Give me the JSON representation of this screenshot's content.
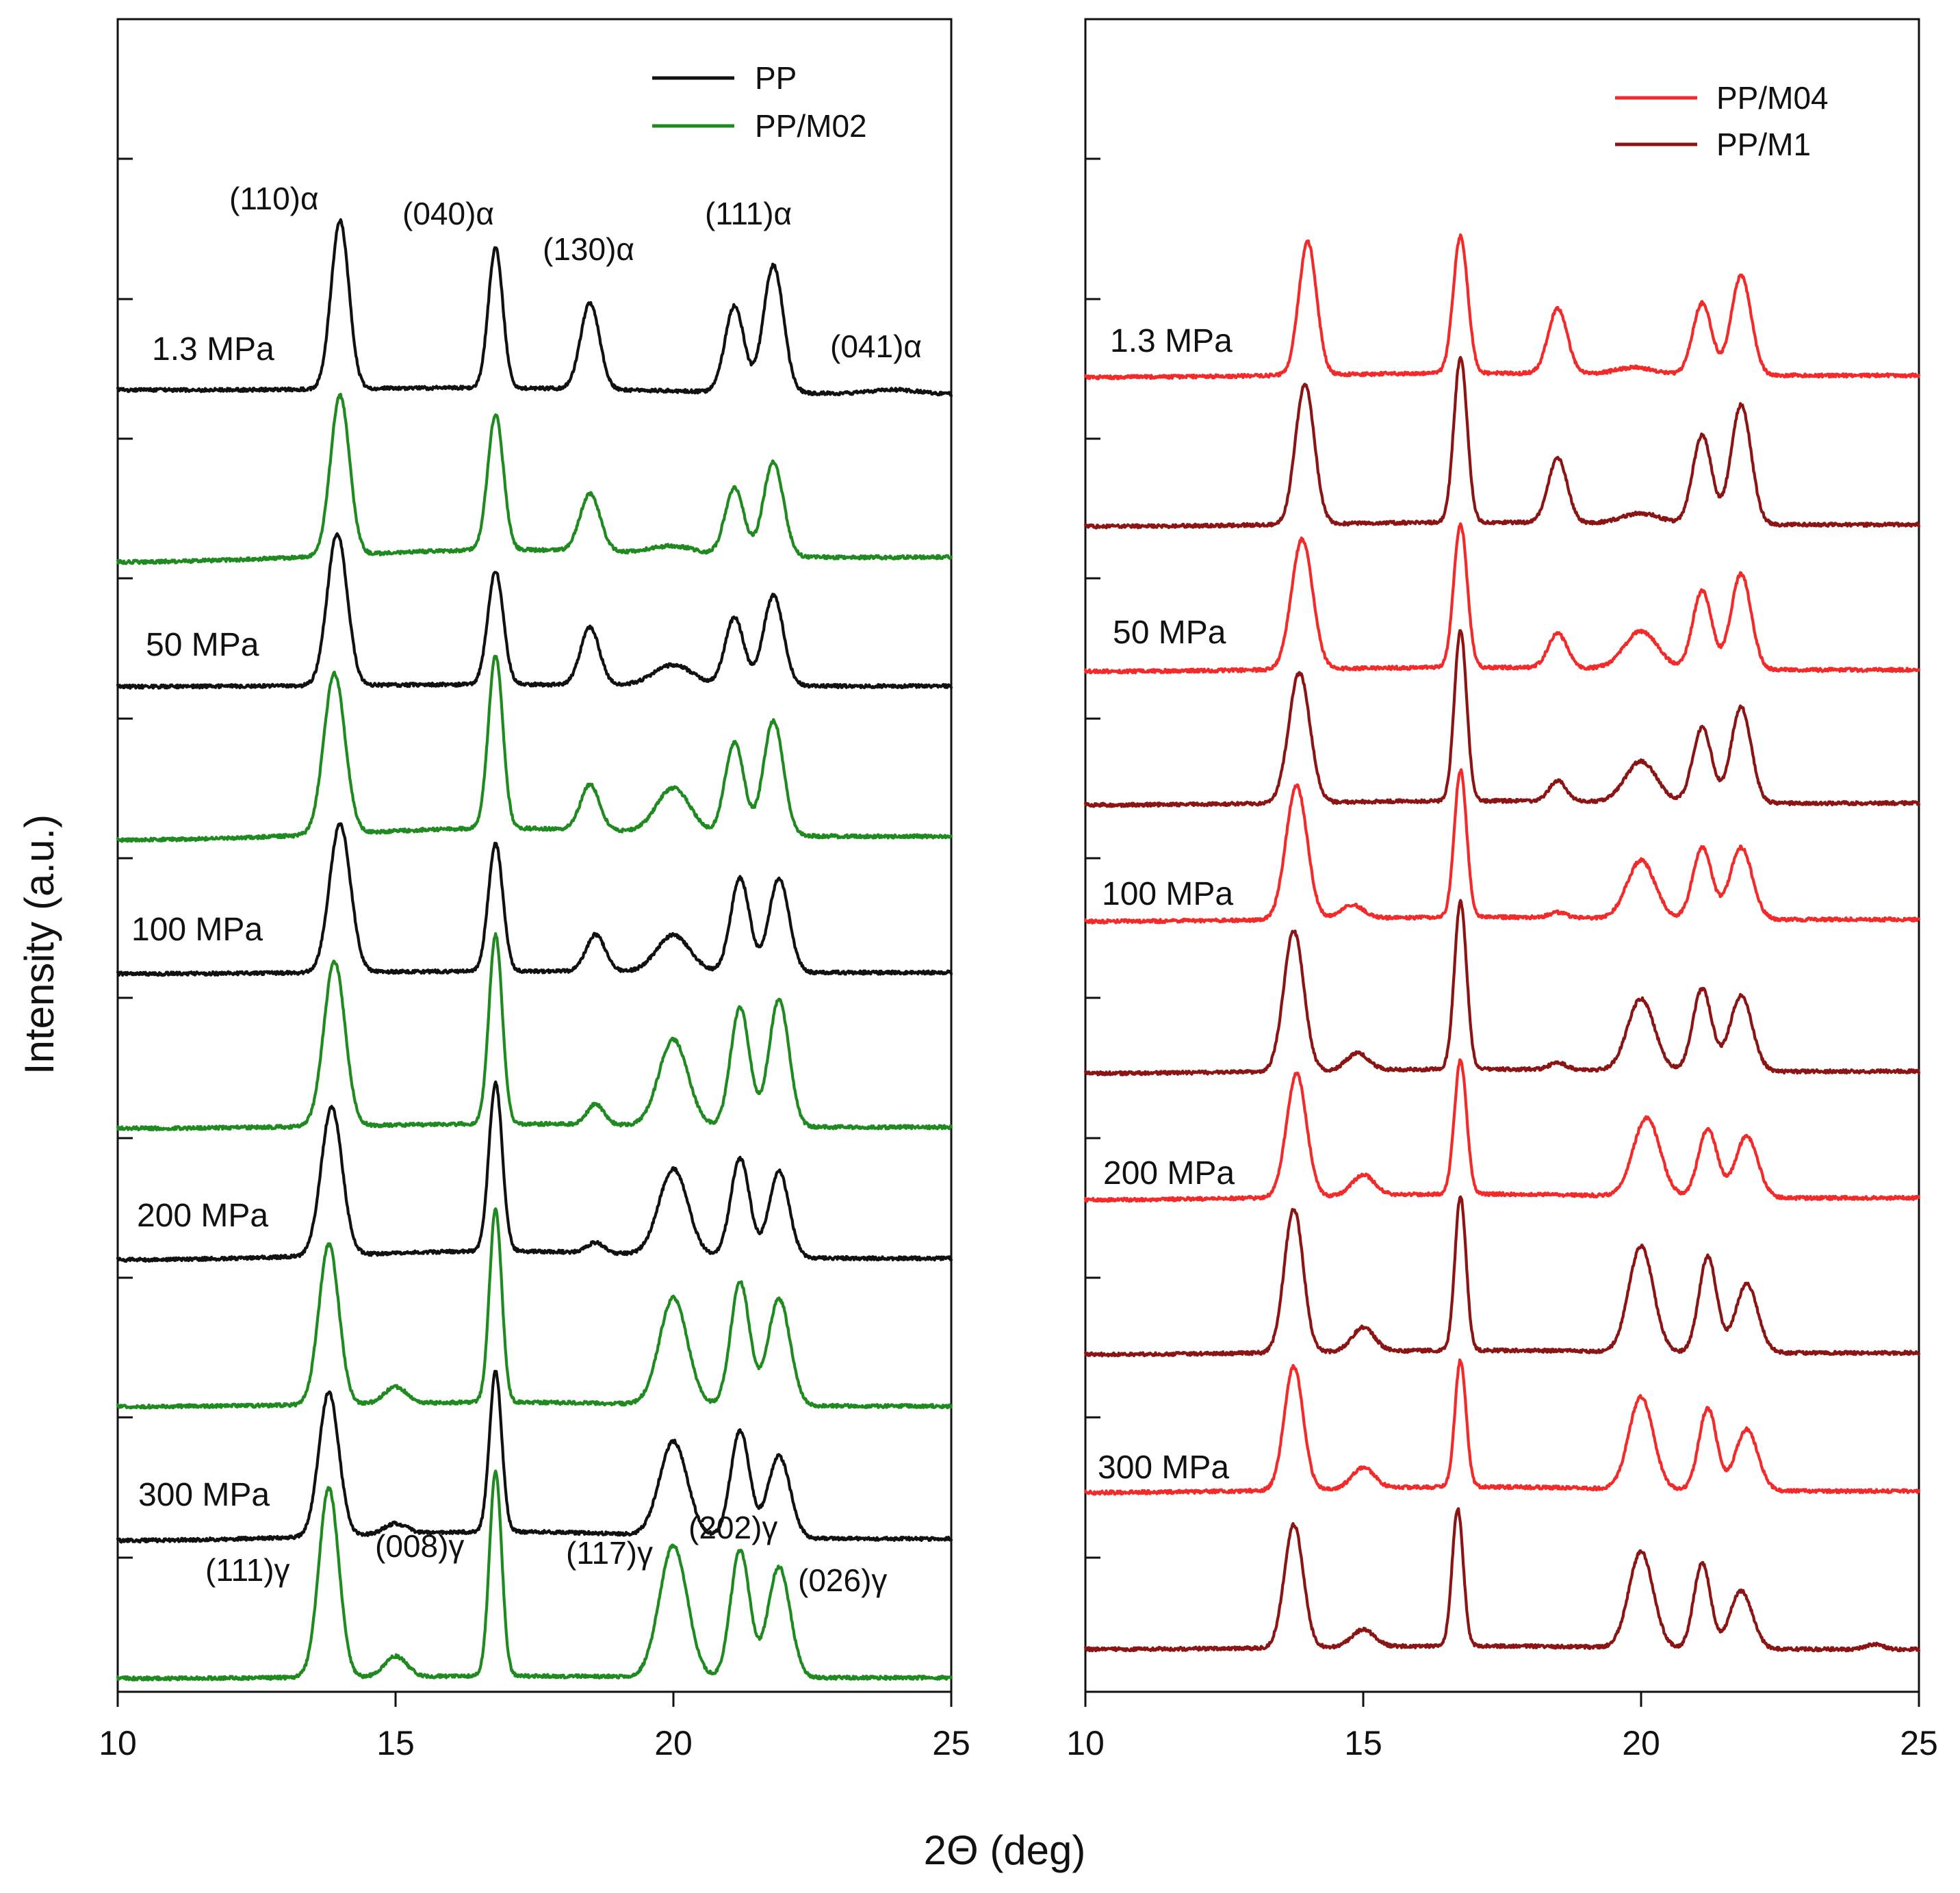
{
  "chart_data": {
    "type": "line",
    "xlabel": "2Θ (deg)",
    "ylabel": "Intensity (a.u.)",
    "xlim": [
      10,
      25
    ],
    "xticks": [
      10,
      15,
      20,
      25
    ],
    "grid": false,
    "colors": {
      "PP": "#111111",
      "PP/M02": "#1f8a1f",
      "PP/M04": "#f22a2a",
      "PP/M1": "#8b1414"
    },
    "panels": [
      {
        "id": "left",
        "legend": {
          "placement": "top-right",
          "entries": [
            "PP",
            "PP/M02"
          ]
        },
        "pressure_labels": [
          "1.3 MPa",
          "50 MPa",
          "100 MPa",
          "200 MPa",
          "300 MPa"
        ],
        "alpha_reflections": [
          {
            "label": "(110)α",
            "x": 14.0
          },
          {
            "label": "(040)α",
            "x": 16.8
          },
          {
            "label": "(130)α",
            "x": 18.5
          },
          {
            "label": "(111)α",
            "x": 21.5
          },
          {
            "label": "(041)α",
            "x": 24.0
          }
        ],
        "gamma_reflections": [
          {
            "label": "(111)γ",
            "x": 13.8
          },
          {
            "label": "(008)γ",
            "x": 16.8
          },
          {
            "label": "(117)γ",
            "x": 20.1
          },
          {
            "label": "(202)γ",
            "x": 21.2
          },
          {
            "label": "(026)γ",
            "x": 22.0
          }
        ],
        "series": [
          {
            "name": "PP",
            "pressure": "1.3 MPa",
            "peaks": [
              [
                14.0,
                0.82,
                0.16
              ],
              [
                16.8,
                0.68,
                0.13
              ],
              [
                18.5,
                0.42,
                0.17
              ],
              [
                21.1,
                0.42,
                0.17
              ],
              [
                21.8,
                0.62,
                0.18
              ],
              [
                24.0,
                0.02,
                0.4
              ]
            ]
          },
          {
            "name": "PP/M02",
            "pressure": "1.3 MPa",
            "peaks": [
              [
                14.0,
                0.78,
                0.17
              ],
              [
                16.8,
                0.66,
                0.14
              ],
              [
                18.5,
                0.28,
                0.18
              ],
              [
                21.1,
                0.33,
                0.17
              ],
              [
                21.8,
                0.46,
                0.18
              ],
              [
                20.0,
                0.04,
                0.4
              ]
            ]
          },
          {
            "name": "PP",
            "pressure": "50 MPa",
            "peaks": [
              [
                13.95,
                0.74,
                0.18
              ],
              [
                16.8,
                0.55,
                0.14
              ],
              [
                18.5,
                0.28,
                0.17
              ],
              [
                20.0,
                0.1,
                0.35
              ],
              [
                21.1,
                0.33,
                0.17
              ],
              [
                21.8,
                0.44,
                0.18
              ]
            ]
          },
          {
            "name": "PP/M02",
            "pressure": "50 MPa",
            "peaks": [
              [
                13.9,
                0.78,
                0.19
              ],
              [
                16.8,
                0.84,
                0.13
              ],
              [
                18.5,
                0.22,
                0.17
              ],
              [
                20.0,
                0.22,
                0.3
              ],
              [
                21.1,
                0.45,
                0.17
              ],
              [
                21.8,
                0.56,
                0.18
              ]
            ]
          },
          {
            "name": "PP",
            "pressure": "100 MPa",
            "peaks": [
              [
                14.0,
                0.72,
                0.19
              ],
              [
                16.8,
                0.62,
                0.13
              ],
              [
                18.6,
                0.18,
                0.17
              ],
              [
                20.0,
                0.18,
                0.3
              ],
              [
                21.2,
                0.46,
                0.17
              ],
              [
                21.9,
                0.46,
                0.18
              ]
            ]
          },
          {
            "name": "PP/M02",
            "pressure": "100 MPa",
            "peaks": [
              [
                13.9,
                0.8,
                0.19
              ],
              [
                16.8,
                0.92,
                0.12
              ],
              [
                18.6,
                0.1,
                0.15
              ],
              [
                20.0,
                0.42,
                0.26
              ],
              [
                21.2,
                0.58,
                0.17
              ],
              [
                21.9,
                0.62,
                0.18
              ]
            ]
          },
          {
            "name": "PP",
            "pressure": "200 MPa",
            "peaks": [
              [
                13.85,
                0.72,
                0.19
              ],
              [
                16.8,
                0.82,
                0.12
              ],
              [
                18.6,
                0.05,
                0.15
              ],
              [
                20.0,
                0.42,
                0.26
              ],
              [
                21.2,
                0.48,
                0.17
              ],
              [
                21.9,
                0.42,
                0.18
              ]
            ]
          },
          {
            "name": "PP/M02",
            "pressure": "200 MPa",
            "peaks": [
              [
                13.8,
                0.78,
                0.18
              ],
              [
                15.0,
                0.08,
                0.2
              ],
              [
                16.8,
                0.94,
                0.11
              ],
              [
                20.0,
                0.52,
                0.25
              ],
              [
                21.2,
                0.6,
                0.17
              ],
              [
                21.9,
                0.52,
                0.2
              ]
            ]
          },
          {
            "name": "PP",
            "pressure": "300 MPa",
            "peaks": [
              [
                13.8,
                0.7,
                0.18
              ],
              [
                15.0,
                0.05,
                0.2
              ],
              [
                16.8,
                0.78,
                0.11
              ],
              [
                20.0,
                0.46,
                0.25
              ],
              [
                21.2,
                0.52,
                0.17
              ],
              [
                21.9,
                0.4,
                0.2
              ]
            ]
          },
          {
            "name": "PP/M02",
            "pressure": "300 MPa",
            "peaks": [
              [
                13.8,
                0.92,
                0.18
              ],
              [
                15.0,
                0.1,
                0.2
              ],
              [
                16.8,
                1.0,
                0.11
              ],
              [
                20.0,
                0.64,
                0.25
              ],
              [
                21.2,
                0.62,
                0.17
              ],
              [
                21.9,
                0.54,
                0.2
              ]
            ]
          }
        ]
      },
      {
        "id": "right",
        "legend": {
          "placement": "top-right",
          "entries": [
            "PP/M04",
            "PP/M1"
          ]
        },
        "pressure_labels": [
          "1.3 MPa",
          "50 MPa",
          "100 MPa",
          "200 MPa",
          "300 MPa"
        ],
        "series": [
          {
            "name": "PP/M04",
            "pressure": "1.3 MPa",
            "peaks": [
              [
                14.0,
                0.78,
                0.16
              ],
              [
                16.75,
                0.8,
                0.13
              ],
              [
                18.5,
                0.38,
                0.17
              ],
              [
                19.9,
                0.04,
                0.35
              ],
              [
                21.1,
                0.42,
                0.17
              ],
              [
                21.8,
                0.58,
                0.18
              ]
            ]
          },
          {
            "name": "PP/M1",
            "pressure": "1.3 MPa",
            "peaks": [
              [
                13.95,
                0.82,
                0.17
              ],
              [
                16.75,
                0.96,
                0.12
              ],
              [
                18.5,
                0.38,
                0.17
              ],
              [
                20.0,
                0.06,
                0.35
              ],
              [
                21.1,
                0.52,
                0.17
              ],
              [
                21.8,
                0.7,
                0.18
              ]
            ]
          },
          {
            "name": "PP/M04",
            "pressure": "50 MPa",
            "peaks": [
              [
                13.9,
                0.76,
                0.19
              ],
              [
                16.75,
                0.84,
                0.12
              ],
              [
                18.5,
                0.2,
                0.17
              ],
              [
                20.0,
                0.22,
                0.3
              ],
              [
                21.1,
                0.46,
                0.17
              ],
              [
                21.8,
                0.56,
                0.18
              ]
            ]
          },
          {
            "name": "PP/M1",
            "pressure": "50 MPa",
            "peaks": [
              [
                13.85,
                0.76,
                0.19
              ],
              [
                16.75,
                1.0,
                0.11
              ],
              [
                18.5,
                0.12,
                0.15
              ],
              [
                20.0,
                0.24,
                0.28
              ],
              [
                21.1,
                0.44,
                0.17
              ],
              [
                21.8,
                0.56,
                0.18
              ]
            ]
          },
          {
            "name": "PP/M04",
            "pressure": "100 MPa",
            "peaks": [
              [
                13.8,
                0.78,
                0.19
              ],
              [
                14.8,
                0.08,
                0.2
              ],
              [
                16.75,
                0.86,
                0.11
              ],
              [
                18.5,
                0.03,
                0.15
              ],
              [
                20.0,
                0.34,
                0.25
              ],
              [
                21.1,
                0.42,
                0.17
              ],
              [
                21.8,
                0.42,
                0.2
              ]
            ]
          },
          {
            "name": "PP/M1",
            "pressure": "100 MPa",
            "peaks": [
              [
                13.75,
                0.82,
                0.18
              ],
              [
                14.9,
                0.1,
                0.2
              ],
              [
                16.75,
                0.98,
                0.11
              ],
              [
                18.5,
                0.04,
                0.15
              ],
              [
                20.0,
                0.42,
                0.24
              ],
              [
                21.1,
                0.48,
                0.17
              ],
              [
                21.8,
                0.44,
                0.2
              ]
            ]
          },
          {
            "name": "PP/M04",
            "pressure": "200 MPa",
            "peaks": [
              [
                13.8,
                0.72,
                0.18
              ],
              [
                15.0,
                0.12,
                0.2
              ],
              [
                16.75,
                0.78,
                0.11
              ],
              [
                20.1,
                0.46,
                0.24
              ],
              [
                21.2,
                0.4,
                0.17
              ],
              [
                21.9,
                0.36,
                0.2
              ]
            ]
          },
          {
            "name": "PP/M1",
            "pressure": "200 MPa",
            "peaks": [
              [
                13.75,
                0.84,
                0.17
              ],
              [
                15.0,
                0.14,
                0.2
              ],
              [
                16.75,
                0.9,
                0.1
              ],
              [
                20.0,
                0.62,
                0.22
              ],
              [
                21.2,
                0.56,
                0.16
              ],
              [
                21.9,
                0.4,
                0.2
              ]
            ]
          },
          {
            "name": "PP/M04",
            "pressure": "300 MPa",
            "peaks": [
              [
                13.75,
                0.72,
                0.17
              ],
              [
                15.0,
                0.12,
                0.2
              ],
              [
                16.75,
                0.74,
                0.1
              ],
              [
                20.0,
                0.54,
                0.22
              ],
              [
                21.2,
                0.48,
                0.16
              ],
              [
                21.9,
                0.36,
                0.2
              ]
            ]
          },
          {
            "name": "PP/M1",
            "pressure": "300 MPa",
            "peaks": [
              [
                13.75,
                0.72,
                0.17
              ],
              [
                15.0,
                0.1,
                0.2
              ],
              [
                16.7,
                0.8,
                0.1
              ],
              [
                20.0,
                0.56,
                0.22
              ],
              [
                21.1,
                0.5,
                0.15
              ],
              [
                21.8,
                0.34,
                0.2
              ],
              [
                24.2,
                0.03,
                0.15
              ]
            ]
          }
        ]
      }
    ]
  }
}
